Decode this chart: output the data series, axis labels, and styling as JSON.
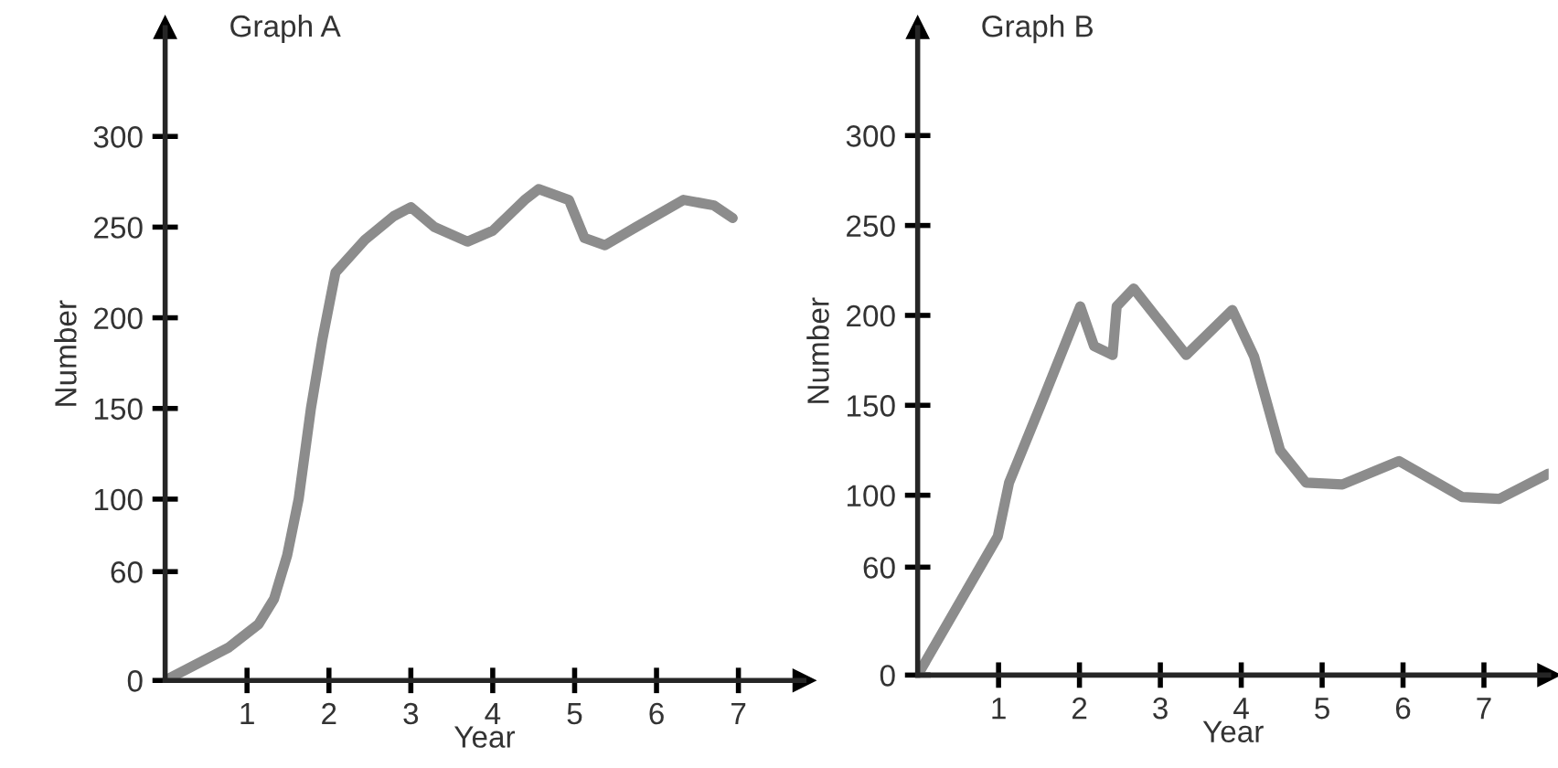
{
  "chart_data": [
    {
      "type": "line",
      "title": "Graph A",
      "xlabel": "Year",
      "ylabel": "Number",
      "xlim": [
        0,
        7.8
      ],
      "ylim": [
        0,
        360
      ],
      "xticks": [
        1,
        2,
        3,
        4,
        5,
        6,
        7
      ],
      "yticks": [
        0,
        60,
        100,
        150,
        200,
        250,
        300
      ],
      "grid": false,
      "legend": false,
      "marker": "none",
      "line_style": "solid",
      "series": [
        {
          "color": "#8c8c8c",
          "x": [
            0,
            0.77,
            1.14,
            1.33,
            1.49,
            1.63,
            1.78,
            1.92,
            2.08,
            2.44,
            2.79,
            3,
            3.29,
            3.69,
            4,
            4.39,
            4.56,
            4.93,
            5.12,
            5.37,
            5.75,
            6.33,
            6.7,
            6.93
          ],
          "values": [
            0,
            18,
            31,
            45,
            69,
            100,
            150,
            188,
            225,
            243,
            256,
            261,
            250,
            242,
            248,
            265,
            271,
            265,
            244,
            240,
            250,
            265,
            262,
            255
          ]
        }
      ]
    },
    {
      "type": "line",
      "title": "Graph B",
      "xlabel": "Year",
      "ylabel": "Number",
      "xlim": [
        0,
        7.8
      ],
      "ylim": [
        0,
        360
      ],
      "xticks": [
        1,
        2,
        3,
        4,
        5,
        6,
        7
      ],
      "yticks": [
        0,
        60,
        100,
        150,
        200,
        250,
        300
      ],
      "grid": false,
      "legend": false,
      "marker": "none",
      "line_style": "solid",
      "series": [
        {
          "color": "#8c8c8c",
          "x": [
            0,
            0.99,
            1.13,
            1.52,
            2.01,
            2.18,
            2.41,
            2.46,
            2.67,
            3.32,
            3.89,
            4.16,
            4.48,
            4.8,
            5.25,
            5.95,
            6.73,
            7.19,
            7.8
          ],
          "values": [
            0,
            77,
            107,
            150,
            205,
            183,
            178,
            205,
            215,
            178,
            203,
            177,
            125,
            107,
            106,
            119,
            99,
            98,
            112
          ]
        }
      ]
    }
  ]
}
